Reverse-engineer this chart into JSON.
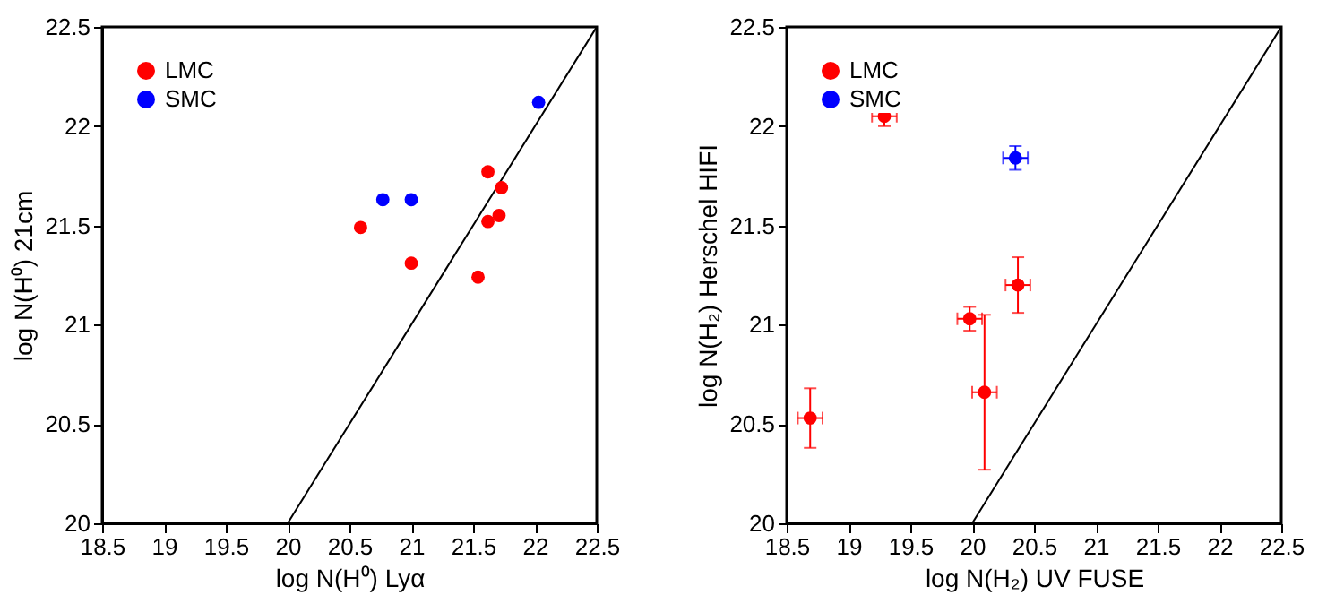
{
  "chart_data": [
    {
      "type": "scatter",
      "xlabel": "log N(H⁰) Lyα",
      "ylabel": "log N(H⁰) 21cm",
      "xlim": [
        18.5,
        22.5
      ],
      "ylim": [
        20,
        22.5
      ],
      "xticks": [
        18.5,
        19,
        19.5,
        20,
        20.5,
        21,
        21.5,
        22,
        22.5
      ],
      "yticks": [
        20,
        20.5,
        21,
        21.5,
        22,
        22.5
      ],
      "legend": "top left",
      "grid": false,
      "series": [
        {
          "name": "LMC",
          "color": "#ff0000",
          "marker": "circle",
          "x": [
            20.59,
            21.0,
            21.54,
            21.62,
            21.73,
            21.62,
            21.71
          ],
          "values": [
            21.49,
            21.31,
            21.24,
            21.77,
            21.69,
            21.52,
            21.55
          ]
        },
        {
          "name": "SMC",
          "color": "#0000ff",
          "marker": "circle",
          "x": [
            22.03,
            20.77,
            21.0
          ],
          "values": [
            22.12,
            21.63,
            21.63
          ]
        },
        {
          "type": "line",
          "color": "#000000",
          "marker": "none",
          "x": [
            20,
            22.5
          ],
          "values": [
            20,
            22.5
          ]
        }
      ]
    },
    {
      "type": "scatter",
      "xlabel": "log N(H₂) UV FUSE",
      "ylabel": "log N(H₂) Herschel HIFI",
      "xlim": [
        18.5,
        22.5
      ],
      "ylim": [
        20,
        22.5
      ],
      "xticks": [
        18.5,
        19,
        19.5,
        20,
        20.5,
        21,
        21.5,
        22,
        22.5
      ],
      "yticks": [
        20,
        20.5,
        21,
        21.5,
        22,
        22.5
      ],
      "legend": "top left",
      "grid": false,
      "series": [
        {
          "name": "LMC",
          "color": "#ff0000",
          "marker": "circle",
          "x": [
            19.29,
            18.69,
            19.98,
            20.1,
            20.37
          ],
          "values": [
            22.05,
            20.53,
            21.03,
            20.66,
            21.2
          ],
          "errors": [
            0.05,
            0.15,
            0.06,
            [
              20.27,
              21.05
            ],
            0.14
          ],
          "xerrors": [
            0.1,
            0.1,
            0.1,
            0.1,
            0.1
          ]
        },
        {
          "name": "SMC",
          "color": "#0000ff",
          "marker": "circle",
          "x": [
            20.35
          ],
          "values": [
            21.84
          ],
          "errors": [
            0.06
          ],
          "xerrors": [
            0.1
          ]
        },
        {
          "type": "line",
          "color": "#000000",
          "marker": "none",
          "x": [
            20,
            22.5
          ],
          "values": [
            20,
            22.5
          ]
        }
      ]
    }
  ]
}
